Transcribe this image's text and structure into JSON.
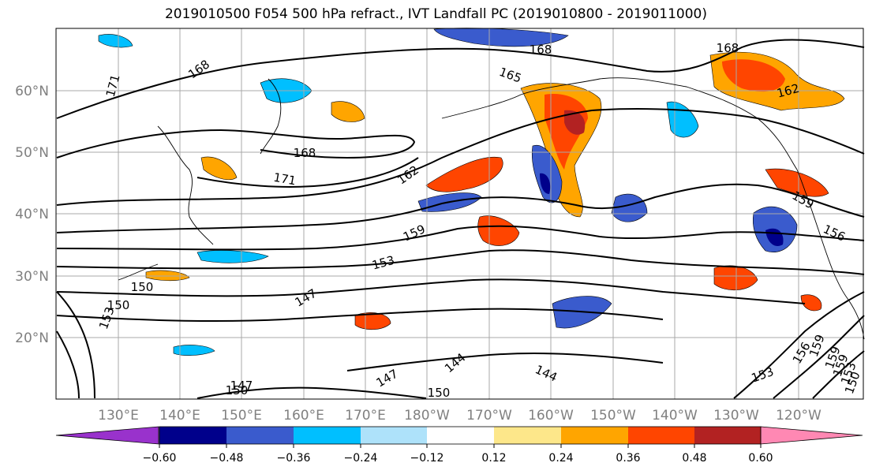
{
  "title": "2019010500 F054 500 hPa refract., IVT Landfall PC (2019010800 - 2019011000)",
  "lat_labels": [
    "60°N",
    "50°N",
    "40°N",
    "30°N",
    "20°N"
  ],
  "lon_labels": [
    "130°E",
    "140°E",
    "150°E",
    "160°E",
    "170°E",
    "180°W",
    "170°W",
    "160°W",
    "150°W",
    "140°W",
    "130°W",
    "120°W"
  ],
  "contour_labels": [
    "168",
    "171",
    "168",
    "165",
    "168",
    "162",
    "168",
    "171",
    "162",
    "159",
    "159",
    "156",
    "159",
    "153",
    "150",
    "153",
    "150",
    "147",
    "144",
    "144",
    "147",
    "150",
    "153",
    "150",
    "147",
    "156",
    "159",
    "159",
    "153",
    "150"
  ],
  "colorbar": {
    "ticks": [
      "−0.60",
      "−0.48",
      "−0.36",
      "−0.24",
      "−0.12",
      "0.12",
      "0.24",
      "0.36",
      "0.48",
      "0.60"
    ],
    "colors": [
      "#9932cc",
      "#00008b",
      "#3a5bcd",
      "#00bfff",
      "#aee2fa",
      "#ffffff",
      "#fde78a",
      "#ffa500",
      "#ff4500",
      "#b22222",
      "#ff88b3"
    ]
  },
  "map_colors": {
    "grid": "#a9a9a9",
    "contour": "#000000",
    "coast": "#000000"
  }
}
